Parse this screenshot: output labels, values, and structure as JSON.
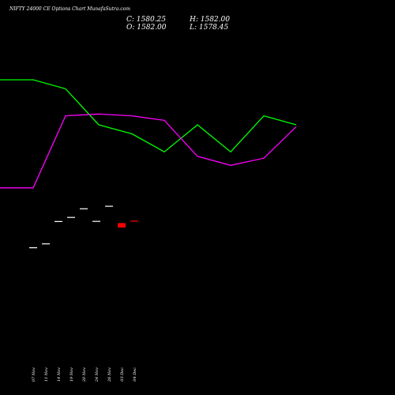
{
  "header": {
    "title": "NIFTY 24000  CE Options  Chart MunafaSutra.com",
    "close": "C: 1580.25",
    "open": "O: 1582.00",
    "high": "H: 1582.00",
    "low": "L: 1578.45"
  },
  "chart_data": {
    "type": "candlestick",
    "title": "NIFTY 24000  CE Options  Chart MunafaSutra.com",
    "categories": [
      "07 Nov",
      "11 Nov",
      "14 Nov",
      "19 Nov",
      "20 Nov",
      "24 Nov",
      "26 Nov",
      "03 Dec",
      "04 Dec"
    ],
    "candles": [
      {
        "date": "07 Nov",
        "open": 1400,
        "close": 1400,
        "color": "#ffffff"
      },
      {
        "date": "11 Nov",
        "open": 1426,
        "close": 1426,
        "color": "#ffffff"
      },
      {
        "date": "14 Nov",
        "open": 1577,
        "close": 1577,
        "color": "#ffffff"
      },
      {
        "date": "19 Nov",
        "open": 1605,
        "close": 1605,
        "color": "#ffffff"
      },
      {
        "date": "20 Nov",
        "open": 1663,
        "close": 1663,
        "color": "#ffffff"
      },
      {
        "date": "24 Nov",
        "open": 1578,
        "close": 1578,
        "color": "#ffffff"
      },
      {
        "date": "26 Nov",
        "open": 1680,
        "close": 1680,
        "color": "#ffffff"
      },
      {
        "date": "03 Dec",
        "open": 1563,
        "close": 1533,
        "color": "#ff0000"
      },
      {
        "date": "04 Dec",
        "open": 1580,
        "close": 1580,
        "color": "#ff0000"
      }
    ],
    "series": [
      {
        "color": "#00ff00",
        "points": [
          [
            0,
            30
          ],
          [
            0.42,
            30
          ],
          [
            0.83,
            29
          ],
          [
            1.25,
            25
          ],
          [
            1.67,
            24
          ],
          [
            2.08,
            22
          ],
          [
            2.5,
            25
          ],
          [
            2.92,
            22
          ],
          [
            3.34,
            26
          ],
          [
            3.75,
            25
          ]
        ]
      },
      {
        "color": "#ff00ff",
        "points": [
          [
            0,
            18
          ],
          [
            0.42,
            18
          ],
          [
            0.83,
            26
          ],
          [
            1.25,
            26.2
          ],
          [
            1.67,
            26
          ],
          [
            2.08,
            25.5
          ],
          [
            2.5,
            21.5
          ],
          [
            2.92,
            20.5
          ],
          [
            3.34,
            21.3
          ],
          [
            3.75,
            24.8
          ]
        ]
      }
    ]
  }
}
